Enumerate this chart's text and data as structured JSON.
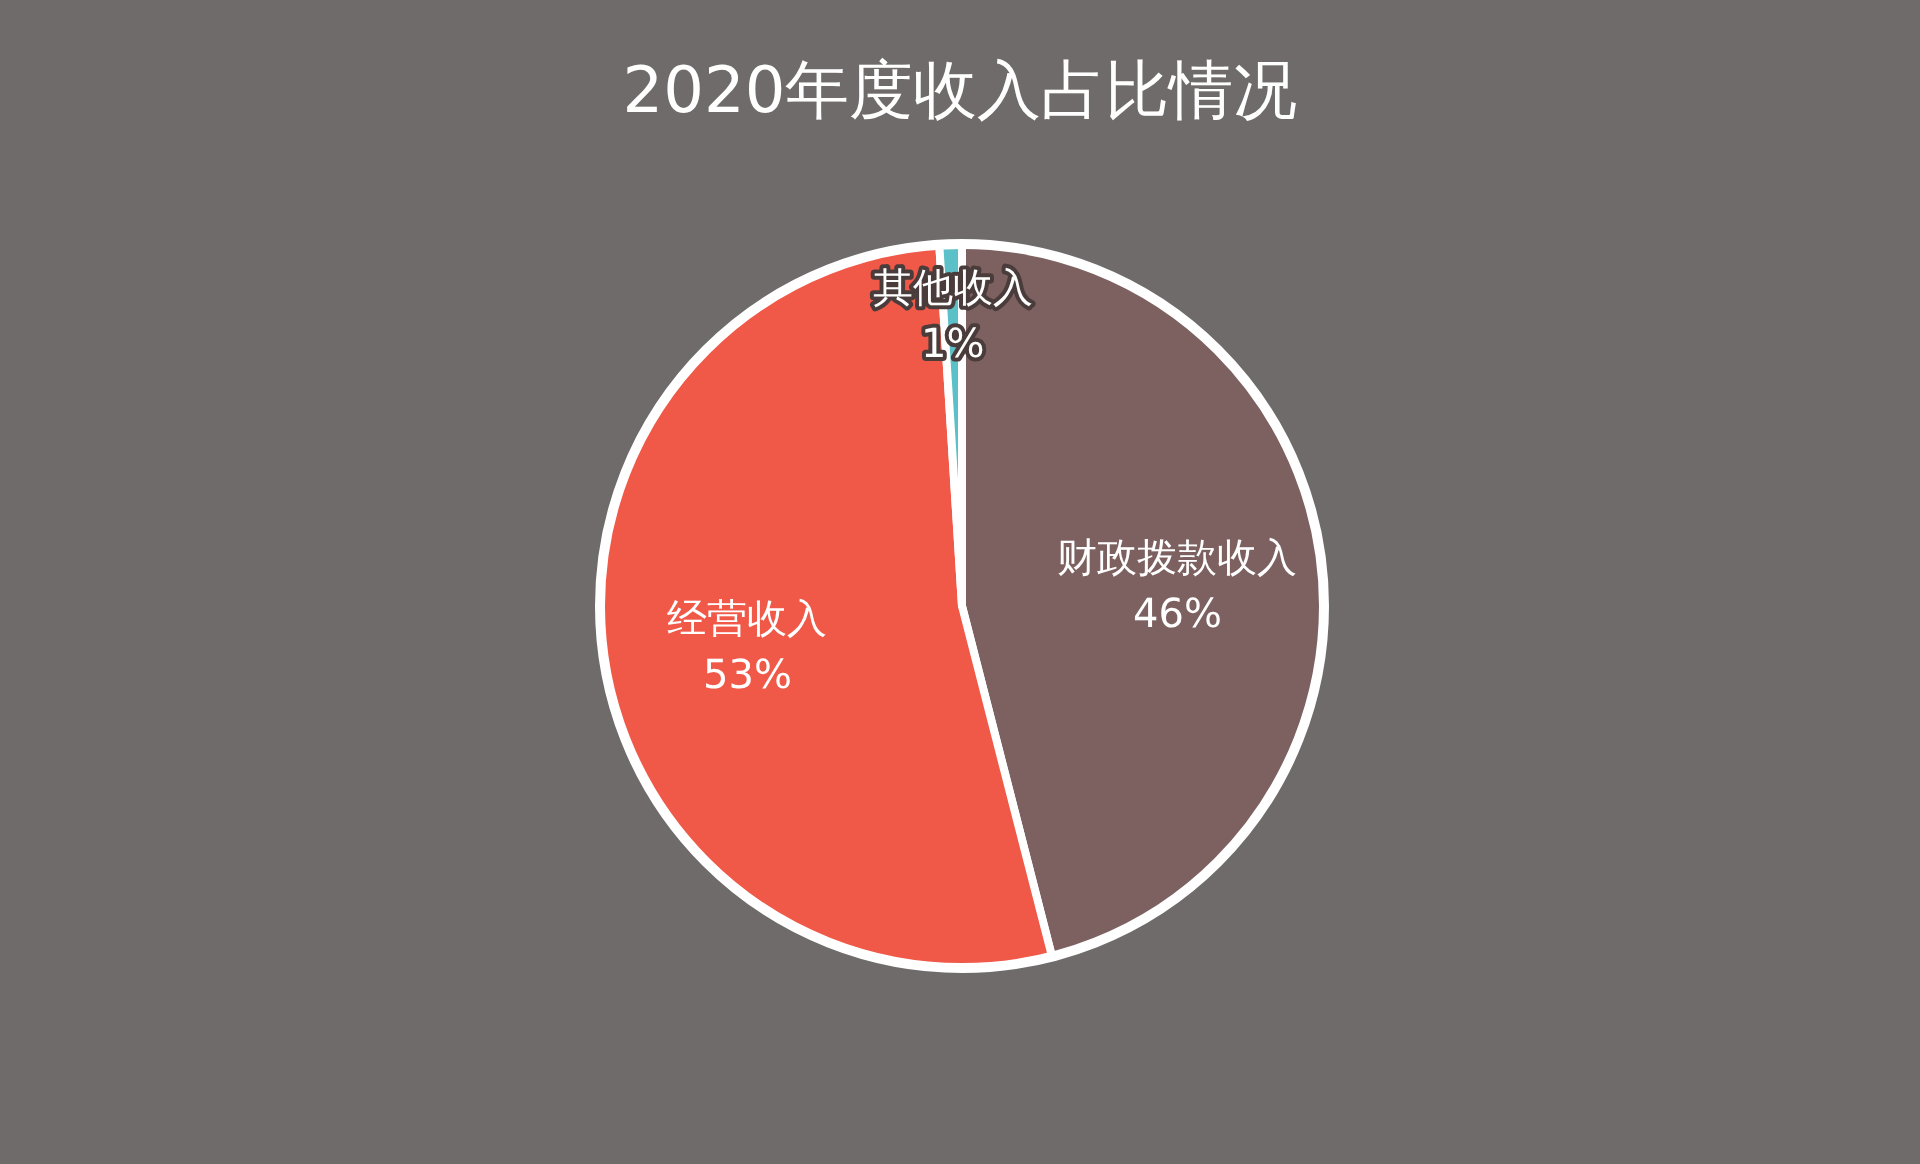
{
  "chart_data": {
    "type": "pie",
    "title": "2020年度收入占比情况",
    "categories": [
      "财政拨款收入",
      "经营收入",
      "其他收入"
    ],
    "values": [
      46,
      53,
      1
    ],
    "value_labels": [
      "46%",
      "53%",
      "1%"
    ],
    "colors": [
      "#7c6160",
      "#f05848",
      "#5cc0c8"
    ]
  }
}
